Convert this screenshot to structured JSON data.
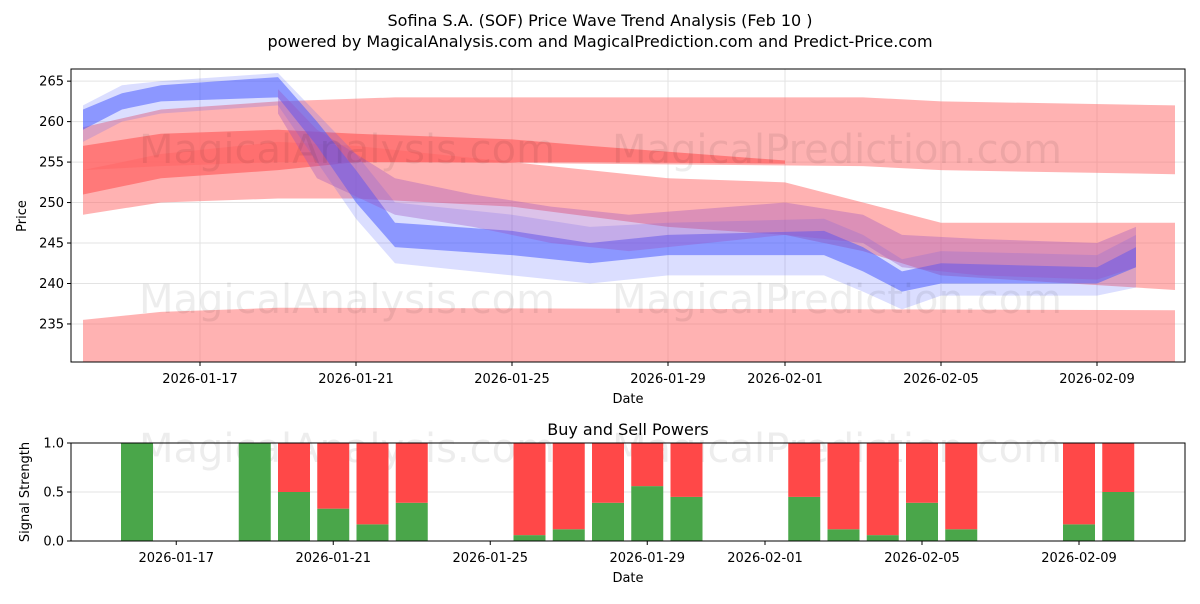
{
  "title": "Sofina S.A. (SOF) Price Wave Trend Analysis (Feb 10 )",
  "subtitle": "powered by MagicalAnalysis.com and MagicalPrediction.com and Predict-Price.com",
  "watermarks": [
    "MagicalAnalysis.com",
    "MagicalPrediction.com"
  ],
  "colors": {
    "red_band": "#ff6666",
    "blue_band": "#4a5cff",
    "purple_band": "#9b4fc0",
    "buy": "#4aa64a",
    "sell": "#ff4848"
  },
  "chart_data": [
    {
      "type": "area",
      "title": "",
      "xlabel": "Date",
      "ylabel": "Price",
      "ylim": [
        230.3,
        266.5
      ],
      "xlim": [
        "2026-01-13",
        "2026-02-11"
      ],
      "yticks": [
        235,
        240,
        245,
        250,
        255,
        260,
        265
      ],
      "xticks": [
        "2026-01-17",
        "2026-01-21",
        "2026-01-25",
        "2026-01-29",
        "2026-02-01",
        "2026-02-05",
        "2026-02-09"
      ],
      "grid": true,
      "bands": [
        {
          "name": "red-upper",
          "color": "red",
          "opacity": 0.5,
          "x": [
            "2026-01-14",
            "2026-01-16",
            "2026-01-19",
            "2026-01-22",
            "2026-02-03",
            "2026-02-05",
            "2026-02-11"
          ],
          "upper": [
            259.3,
            261.5,
            262.5,
            263,
            263,
            262.5,
            262
          ],
          "lower": [
            254,
            254.5,
            255,
            255,
            254.5,
            254,
            253.5
          ]
        },
        {
          "name": "red-mid-light",
          "color": "red",
          "opacity": 0.5,
          "x": [
            "2026-01-14",
            "2026-01-16",
            "2026-01-19",
            "2026-01-21",
            "2026-01-25",
            "2026-01-29",
            "2026-02-01",
            "2026-02-03",
            "2026-02-05",
            "2026-02-11"
          ],
          "upper": [
            254,
            256,
            257.5,
            257,
            255,
            253,
            252.5,
            250,
            247.5,
            247.5
          ],
          "lower": [
            248.5,
            250,
            250.5,
            250.5,
            249.5,
            247,
            246,
            244,
            241,
            239.2
          ]
        },
        {
          "name": "red-mid-dark",
          "color": "red",
          "opacity": 0.75,
          "x": [
            "2026-01-14",
            "2026-01-16",
            "2026-01-19",
            "2026-01-21",
            "2026-01-25",
            "2026-01-27",
            "2026-02-01"
          ],
          "upper": [
            257,
            258.5,
            259,
            258.5,
            257.8,
            257,
            255.2
          ],
          "lower": [
            251,
            253,
            254,
            255,
            255,
            255,
            254.8
          ]
        },
        {
          "name": "red-lower",
          "color": "red",
          "opacity": 0.5,
          "x": [
            "2026-01-14",
            "2026-01-16",
            "2026-01-19",
            "2026-02-11"
          ],
          "upper": [
            235.5,
            236.5,
            237,
            236.7
          ],
          "lower": [
            230,
            230,
            230,
            230
          ]
        },
        {
          "name": "blue-wide",
          "color": "blue",
          "opacity": 0.2,
          "x": [
            "2026-01-14",
            "2026-01-15",
            "2026-01-16",
            "2026-01-19",
            "2026-01-20",
            "2026-01-21",
            "2026-01-22",
            "2026-01-25",
            "2026-01-27",
            "2026-01-29",
            "2026-02-02",
            "2026-02-03",
            "2026-02-04",
            "2026-02-05",
            "2026-02-09",
            "2026-02-10"
          ],
          "upper": [
            262,
            264.5,
            265,
            266,
            261,
            256,
            250,
            248.5,
            247,
            247.5,
            248,
            246,
            243,
            244,
            243.5,
            246
          ],
          "lower": [
            257.5,
            260,
            261,
            262,
            255,
            248,
            242.5,
            241,
            240,
            241,
            241,
            239,
            236.8,
            238.5,
            238.5,
            239.5
          ]
        },
        {
          "name": "blue-core",
          "color": "blue",
          "opacity": 0.55,
          "x": [
            "2026-01-14",
            "2026-01-15",
            "2026-01-16",
            "2026-01-19",
            "2026-01-20",
            "2026-01-21",
            "2026-01-22",
            "2026-01-25",
            "2026-01-27",
            "2026-01-29",
            "2026-02-02",
            "2026-02-03",
            "2026-02-04",
            "2026-02-05",
            "2026-02-09",
            "2026-02-10"
          ],
          "upper": [
            261.5,
            263.5,
            264.5,
            265.5,
            260,
            254,
            247.5,
            246.5,
            245,
            246,
            246.5,
            244.5,
            241.5,
            242.5,
            242,
            244.5
          ],
          "lower": [
            259,
            261.5,
            262.5,
            263,
            257,
            250,
            244.5,
            243.5,
            242.5,
            243.5,
            243.5,
            241.5,
            239,
            240,
            240,
            242
          ]
        },
        {
          "name": "purple",
          "color": "purple",
          "opacity": 0.35,
          "x": [
            "2026-01-19",
            "2026-01-20",
            "2026-01-22",
            "2026-01-24",
            "2026-01-26",
            "2026-01-28",
            "2026-02-01",
            "2026-02-03",
            "2026-02-04",
            "2026-02-06",
            "2026-02-09",
            "2026-02-10"
          ],
          "upper": [
            264,
            259,
            253,
            251,
            249.5,
            248.5,
            250,
            248.5,
            246,
            245.5,
            245,
            247
          ],
          "lower": [
            261,
            253,
            248.5,
            247,
            245,
            244,
            246,
            245,
            242,
            241,
            240.5,
            242
          ]
        }
      ]
    },
    {
      "type": "bar",
      "title": "Buy and Sell Powers",
      "xlabel": "Date",
      "ylabel": "Signal Strength",
      "ylim": [
        0,
        1
      ],
      "yticks": [
        "0.0",
        "0.5",
        "1.0"
      ],
      "xticks": [
        "2026-01-17",
        "2026-01-21",
        "2026-01-25",
        "2026-01-29",
        "2026-02-01",
        "2026-02-05",
        "2026-02-09"
      ],
      "categories": [
        "2026-01-16",
        "2026-01-19",
        "2026-01-20",
        "2026-01-21",
        "2026-01-22",
        "2026-01-23",
        "2026-01-26",
        "2026-01-27",
        "2026-01-28",
        "2026-01-29",
        "2026-01-30",
        "2026-02-02",
        "2026-02-03",
        "2026-02-04",
        "2026-02-05",
        "2026-02-06",
        "2026-02-09",
        "2026-02-10"
      ],
      "series": [
        {
          "name": "Buy",
          "values": [
            1.0,
            1.0,
            0.5,
            0.33,
            0.17,
            0.39,
            0.06,
            0.12,
            0.39,
            0.56,
            0.45,
            0.45,
            0.12,
            0.06,
            0.39,
            0.12,
            0.17,
            0.5
          ]
        },
        {
          "name": "Sell",
          "values": [
            0.0,
            0.0,
            0.5,
            0.67,
            0.83,
            0.61,
            0.94,
            0.88,
            0.61,
            0.44,
            0.55,
            0.55,
            0.88,
            0.94,
            0.61,
            0.88,
            0.83,
            0.5
          ]
        }
      ]
    }
  ]
}
